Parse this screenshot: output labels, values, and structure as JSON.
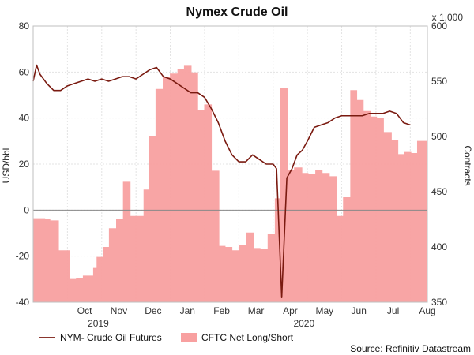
{
  "chart_data": {
    "type": "area+line",
    "title": "Nymex Crude Oil",
    "y_left_label": "USD/bbl",
    "y_right_label": "Contracts",
    "y_right_multiplier": "x 1,000",
    "y_left_range": [
      -40,
      80
    ],
    "y_left_ticks": [
      -40,
      -20,
      0,
      20,
      40,
      60,
      80
    ],
    "y_right_range": [
      350,
      600
    ],
    "y_right_ticks": [
      350,
      400,
      450,
      500,
      550,
      600
    ],
    "x_range": [
      0,
      11.5
    ],
    "month_labels": [
      "Oct",
      "Nov",
      "Dec",
      "Jan",
      "Feb",
      "Mar",
      "Apr",
      "May",
      "Jun",
      "Jul",
      "Aug"
    ],
    "year_labels": [
      {
        "label": "2019",
        "x": 1.9
      },
      {
        "label": "2020",
        "x": 7.9
      }
    ],
    "grid": true,
    "zero_line": true,
    "source": "Source: Refinitiv Datastream",
    "series": [
      {
        "name": "CFTC Net Long/Short",
        "type": "area-step",
        "axis": "right",
        "color": "#f8a0a0",
        "x": [
          0.0,
          0.07,
          0.35,
          0.5,
          0.75,
          0.84,
          1.07,
          1.25,
          1.45,
          1.75,
          1.85,
          2.03,
          2.21,
          2.42,
          2.62,
          2.84,
          3.03,
          3.22,
          3.37,
          3.57,
          3.78,
          3.99,
          4.21,
          4.4,
          4.62,
          4.81,
          4.99,
          5.21,
          5.43,
          5.61,
          5.81,
          6.01,
          6.22,
          6.43,
          6.63,
          6.84,
          7.05,
          7.2,
          7.44,
          7.61,
          7.85,
          8.03,
          8.23,
          8.44,
          8.65,
          8.87,
          9.04,
          9.25,
          9.45,
          9.64,
          9.85,
          10.03,
          10.23,
          10.46,
          10.65,
          10.83,
          11.03,
          11.2,
          11.5
        ],
        "values": [
          426,
          426,
          425,
          424,
          397,
          397,
          371,
          372,
          374,
          381,
          391,
          400,
          417,
          425,
          459,
          428,
          428,
          452,
          500,
          543,
          554,
          557,
          561,
          564,
          558,
          524,
          529,
          469,
          401,
          400,
          397,
          402,
          413,
          399,
          398,
          412,
          444,
          544,
          470,
          472,
          467,
          466,
          470,
          467,
          464,
          428,
          445,
          542,
          533,
          523,
          518,
          517,
          504,
          497,
          484,
          486,
          485,
          496,
          498
        ],
        "values_note": "read from image"
      },
      {
        "name": "NYM- Crude Oil Futures",
        "type": "line",
        "axis": "left",
        "color": "#7a1a10",
        "x": [
          0.0,
          0.1,
          0.2,
          0.4,
          0.6,
          0.8,
          1.0,
          1.2,
          1.4,
          1.6,
          1.8,
          2.0,
          2.2,
          2.4,
          2.6,
          2.8,
          3.0,
          3.2,
          3.4,
          3.6,
          3.8,
          4.0,
          4.2,
          4.4,
          4.6,
          4.8,
          5.0,
          5.2,
          5.4,
          5.6,
          5.8,
          6.0,
          6.2,
          6.4,
          6.6,
          6.8,
          7.0,
          7.1,
          7.25,
          7.4,
          7.55,
          7.7,
          7.85,
          8.0,
          8.2,
          8.4,
          8.6,
          8.8,
          9.0,
          9.2,
          9.4,
          9.6,
          9.8,
          10.0,
          10.2,
          10.4,
          10.6,
          10.8,
          11.0
        ],
        "values": [
          56,
          63,
          59,
          55,
          52,
          52,
          54,
          55,
          56,
          57,
          56,
          57,
          56,
          57,
          58,
          58,
          57,
          59,
          61,
          62,
          58,
          57,
          55,
          53,
          51,
          51,
          49,
          44,
          38,
          30,
          24,
          21,
          21,
          24,
          22,
          20,
          20,
          18,
          -38,
          14,
          18,
          24,
          26,
          30,
          36,
          37,
          38,
          40,
          41,
          41,
          41,
          41,
          42,
          42,
          42,
          43,
          42,
          38,
          37
        ],
        "values_note": "read from image"
      }
    ]
  }
}
